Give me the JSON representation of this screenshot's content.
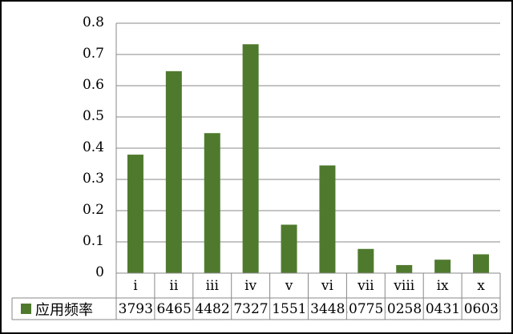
{
  "chart_data": {
    "type": "bar",
    "categories": [
      "i",
      "ii",
      "iii",
      "iv",
      "v",
      "vi",
      "vii",
      "viii",
      "ix",
      "x"
    ],
    "series": [
      {
        "name": "应用频率",
        "values": [
          0.3793,
          0.6465,
          0.4482,
          0.7327,
          0.1551,
          0.3448,
          0.0775,
          0.0258,
          0.0431,
          0.0603
        ]
      }
    ],
    "table_values": [
      "0.3793",
      "0.6465",
      "0.4482",
      "0.7327",
      "0.1551",
      "0.3448",
      "0.0775",
      "0.0258",
      "0.0431",
      "0.0603"
    ],
    "yticks": [
      "0",
      "0.1",
      "0.2",
      "0.3",
      "0.4",
      "0.5",
      "0.6",
      "0.7",
      "0.8"
    ],
    "ylim": [
      0,
      0.8
    ],
    "grid": true,
    "legend": "bottom-data-table",
    "bar_color": "#4f7a2e"
  }
}
